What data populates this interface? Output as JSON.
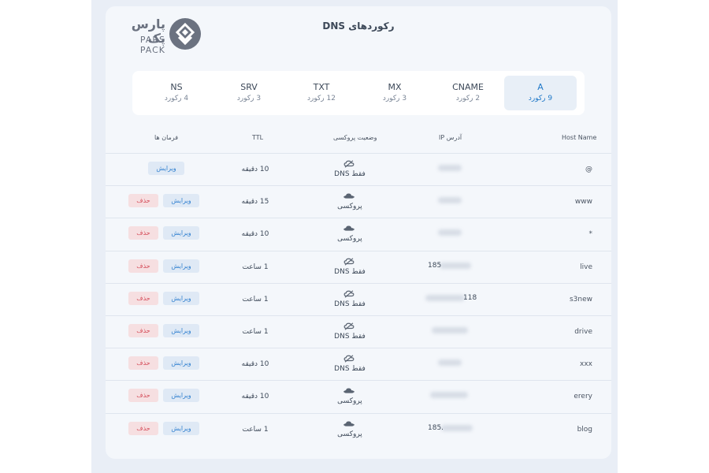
{
  "brand": {
    "name": "پارس پک",
    "sub": "PARS PACK"
  },
  "page": {
    "title": "رکوردهای DNS"
  },
  "tabs": [
    {
      "name": "A",
      "count": "9 رکورد",
      "active": true
    },
    {
      "name": "CNAME",
      "count": "2 رکورد"
    },
    {
      "name": "MX",
      "count": "3 رکورد"
    },
    {
      "name": "TXT",
      "count": "12 رکورد"
    },
    {
      "name": "SRV",
      "count": "3 رکورد"
    },
    {
      "name": "NS",
      "count": "4 رکورد"
    }
  ],
  "table": {
    "headers": {
      "host": "Host Name",
      "ip": "آدرس IP",
      "proxy": "وضعیت پروکسی",
      "ttl": "TTL",
      "actions": "فرمان ها"
    },
    "rows": [
      {
        "host": "@",
        "ip": "",
        "proxy": "فقط DNS",
        "ttl": "10 دقیقه",
        "edit": "ویرایش"
      },
      {
        "host": "www",
        "ip": "",
        "proxy": "پروکسی",
        "ttl": "15 دقیقه",
        "edit": "ویرایش",
        "delete": "حذف"
      },
      {
        "host": "*",
        "ip": "",
        "proxy": "پروکسی",
        "ttl": "10 دقیقه",
        "edit": "ویرایش",
        "delete": "حذف"
      },
      {
        "host": "live",
        "ip": "185",
        "proxy": "فقط DNS",
        "ttl": "1 ساعت",
        "edit": "ویرایش",
        "delete": "حذف"
      },
      {
        "host": "s3new",
        "ip": "118",
        "proxy": "فقط DNS",
        "ttl": "1 ساعت",
        "edit": "ویرایش",
        "delete": "حذف"
      },
      {
        "host": "drive",
        "ip": "",
        "proxy": "فقط DNS",
        "ttl": "1 ساعت",
        "edit": "ویرایش",
        "delete": "حذف"
      },
      {
        "host": "xxx",
        "ip": "",
        "proxy": "فقط DNS",
        "ttl": "10 دقیقه",
        "edit": "ویرایش",
        "delete": "حذف"
      },
      {
        "host": "erery",
        "ip": "",
        "proxy": "پروکسی",
        "ttl": "10 دقیقه",
        "edit": "ویرایش",
        "delete": "حذف"
      },
      {
        "host": "blog",
        "ip": "185.",
        "proxy": "پروکسی",
        "ttl": "1 ساعت",
        "edit": "ویرایش",
        "delete": "حذف"
      }
    ]
  },
  "colors": {
    "accent": "#1f78c8",
    "danger": "#d54d5a",
    "panel": "#f4f7fb"
  },
  "icons": {
    "dns_only": "cloud-off-icon",
    "proxied": "cloud-proxy-icon"
  }
}
